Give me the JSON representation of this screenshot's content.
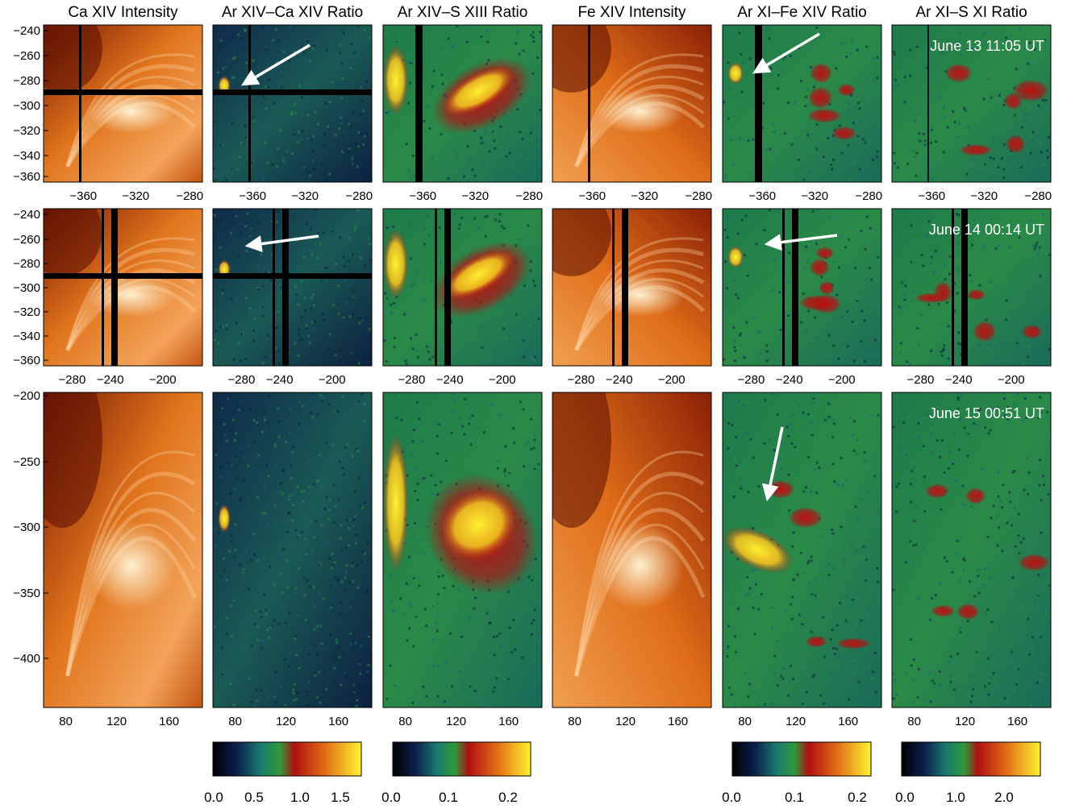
{
  "columns": [
    {
      "title": "Ca XIV Intensity",
      "palette": "heat"
    },
    {
      "title": "Ar XIV–Ca XIV Ratio",
      "palette": "ratio"
    },
    {
      "title": "Ar XIV–S XIII Ratio",
      "palette": "ratio"
    },
    {
      "title": "Fe XIV Intensity",
      "palette": "heat"
    },
    {
      "title": "Ar XI–Fe XIV Ratio",
      "palette": "ratio"
    },
    {
      "title": "Ar XI–S XI Ratio",
      "palette": "ratio"
    }
  ],
  "rows": [
    {
      "timestamp": "June 13 11:05 UT",
      "y_ticks": [
        "−240",
        "−260",
        "−280",
        "−300",
        "−320",
        "−340",
        "−360"
      ],
      "x_ticks": [
        "−360",
        "−320",
        "−280"
      ]
    },
    {
      "timestamp": "June 14 00:14 UT",
      "y_ticks": [
        "−240",
        "−260",
        "−280",
        "−300",
        "−320",
        "−340",
        "−360"
      ],
      "x_ticks": [
        "−280",
        "−240",
        "−200"
      ]
    },
    {
      "timestamp": "June 15 00:51 UT",
      "y_ticks": [
        "−200",
        "−250",
        "−300",
        "−350",
        "−400"
      ],
      "x_ticks": [
        "80",
        "120",
        "160"
      ]
    }
  ],
  "colorbars": [
    {
      "column": 1,
      "labels": [
        "0.0",
        "0.5",
        "1.0",
        "1.5"
      ]
    },
    {
      "column": 2,
      "labels": [
        "0.0",
        "0.1",
        "0.2"
      ]
    },
    {
      "column": 4,
      "labels": [
        "0.0",
        "0.1",
        "0.2"
      ]
    },
    {
      "column": 5,
      "labels": [
        "0.0",
        "1.0",
        "2.0"
      ]
    }
  ],
  "colors": {
    "heat_dark": "#5a0c02",
    "heat_mid": "#e0741c",
    "heat_light": "#ffe6c4",
    "ratio_low": "#081236",
    "ratio_green": "#2a8a48",
    "ratio_red": "#b01010",
    "ratio_high": "#fff030",
    "arrow": "#ffffff"
  }
}
